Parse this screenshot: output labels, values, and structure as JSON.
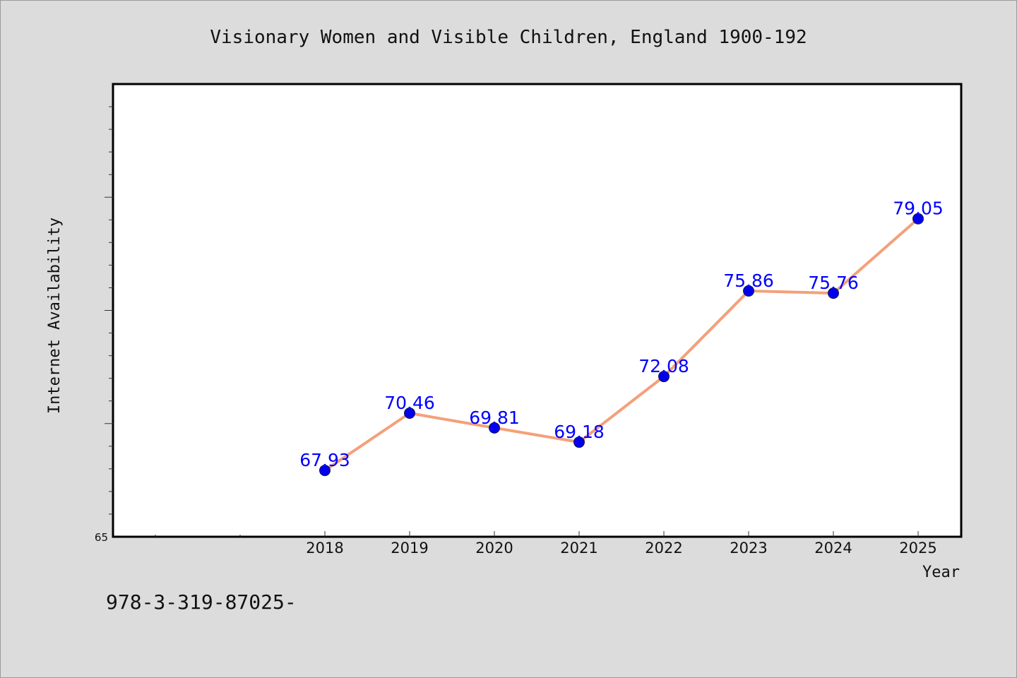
{
  "chart_data": {
    "type": "line",
    "title": "Visionary Women and Visible Children, England 1900-192",
    "xlabel": "Year",
    "ylabel": "Internet Availability",
    "categories": [
      "2018",
      "2019",
      "2020",
      "2021",
      "2022",
      "2023",
      "2024",
      "2025"
    ],
    "values": [
      67.93,
      70.46,
      69.81,
      69.18,
      72.08,
      75.86,
      75.76,
      79.05
    ],
    "data_labels": [
      "67.93",
      "70.46",
      "69.81",
      "69.18",
      "72.08",
      "75.86",
      "75.76",
      "79.05"
    ],
    "ylim": [
      65,
      85
    ],
    "y_tick_label": "65",
    "grid": false,
    "line_color": "#f4a07a",
    "marker_color": "#0000ee",
    "label_color": "#0000ff"
  },
  "footer_text": "978-3-319-87025-"
}
